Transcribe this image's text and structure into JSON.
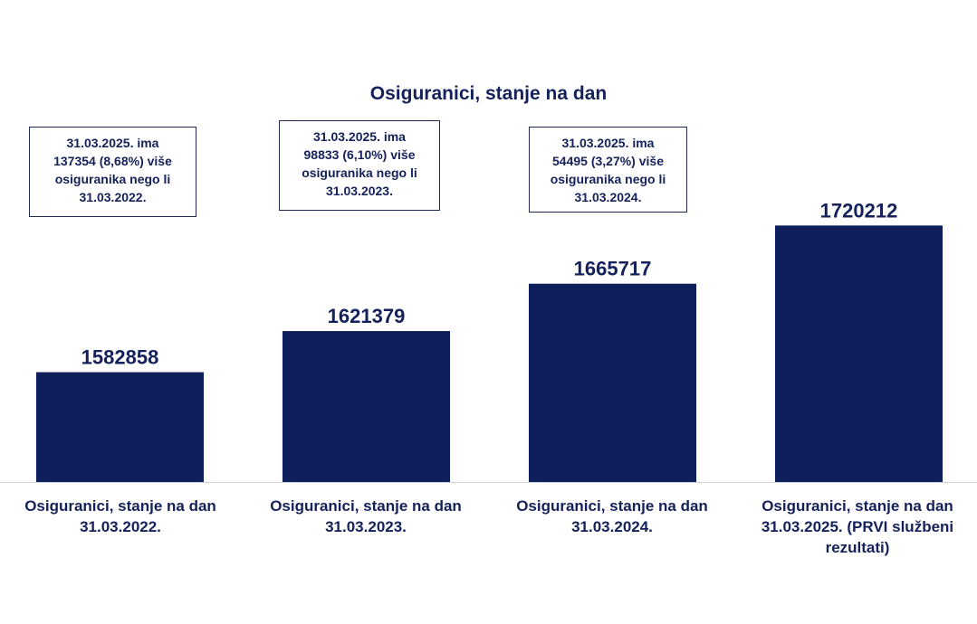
{
  "colors": {
    "bar": "#0f1f5c",
    "text": "#14215a",
    "axis": "#d6d6d6"
  },
  "chart_data": {
    "type": "bar",
    "title": "Osiguranici, stanje na dan",
    "categories": [
      [
        "Osiguranici, stanje na dan",
        "31.03.2022."
      ],
      [
        "Osiguranici, stanje na dan",
        "31.03.2023."
      ],
      [
        "Osiguranici, stanje na dan",
        "31.03.2024."
      ],
      [
        "Osiguranici, stanje na dan",
        "31.03.2025. (PRVI službeni",
        "rezultati)"
      ]
    ],
    "values": [
      1582858,
      1621379,
      1665717,
      1720212
    ],
    "data_labels": [
      "1582858",
      "1621379",
      "1665717",
      "1720212"
    ],
    "ylim": [
      1480000,
      1740000
    ],
    "grid": false,
    "annotations": [
      [
        "31.03.2025. ima",
        "137354 (8,68%) više",
        "osiguranika nego li",
        "31.03.2022."
      ],
      [
        "31.03.2025. ima",
        "98833 (6,10%) više",
        "osiguranika nego li",
        "31.03.2023."
      ],
      [
        "31.03.2025. ima",
        "54495 (3,27%) više",
        "osiguranika nego li",
        "31.03.2024."
      ]
    ]
  }
}
